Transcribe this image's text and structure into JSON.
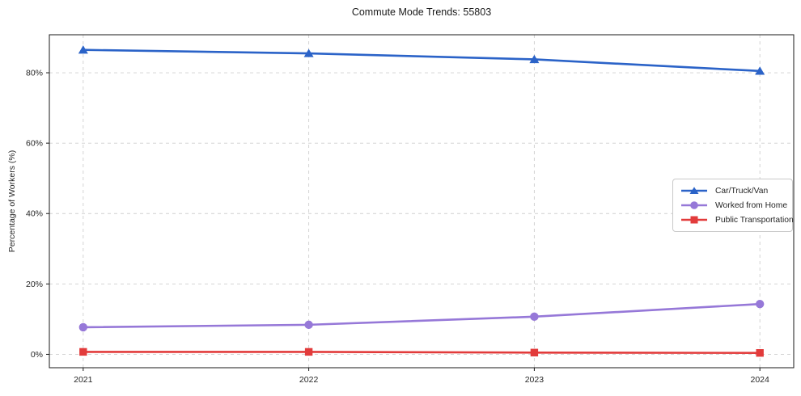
{
  "chart_data": {
    "type": "line",
    "title": "Commute Mode Trends: 55803",
    "xlabel": "",
    "ylabel": "Percentage of Workers (%)",
    "x": [
      2021,
      2022,
      2023,
      2024
    ],
    "xlim": [
      2020.85,
      2024.15
    ],
    "ylim": [
      -3.8,
      90.8
    ],
    "xticks": [
      {
        "value": 2021,
        "label": "2021"
      },
      {
        "value": 2022,
        "label": "2022"
      },
      {
        "value": 2023,
        "label": "2023"
      },
      {
        "value": 2024,
        "label": "2024"
      }
    ],
    "yticks": [
      {
        "value": 0,
        "label": "0%"
      },
      {
        "value": 20,
        "label": "20%"
      },
      {
        "value": 40,
        "label": "40%"
      },
      {
        "value": 60,
        "label": "60%"
      },
      {
        "value": 80,
        "label": "80%"
      }
    ],
    "grid": true,
    "grid_style": "dashed",
    "legend_position": "center-right",
    "series": [
      {
        "name": "Car/Truck/Van",
        "color": "#2b63c8",
        "marker": "triangle",
        "values": [
          86.5,
          85.5,
          83.8,
          80.5
        ]
      },
      {
        "name": "Worked from Home",
        "color": "#9678d8",
        "marker": "circle",
        "values": [
          7.7,
          8.4,
          10.7,
          14.3
        ]
      },
      {
        "name": "Public Transportation",
        "color": "#e23b3b",
        "marker": "square",
        "values": [
          0.7,
          0.7,
          0.5,
          0.4
        ]
      }
    ],
    "colors": {
      "grid": "#cfcfcf",
      "spine": "#1a1a1a",
      "text": "#262626",
      "background": "#ffffff"
    }
  }
}
